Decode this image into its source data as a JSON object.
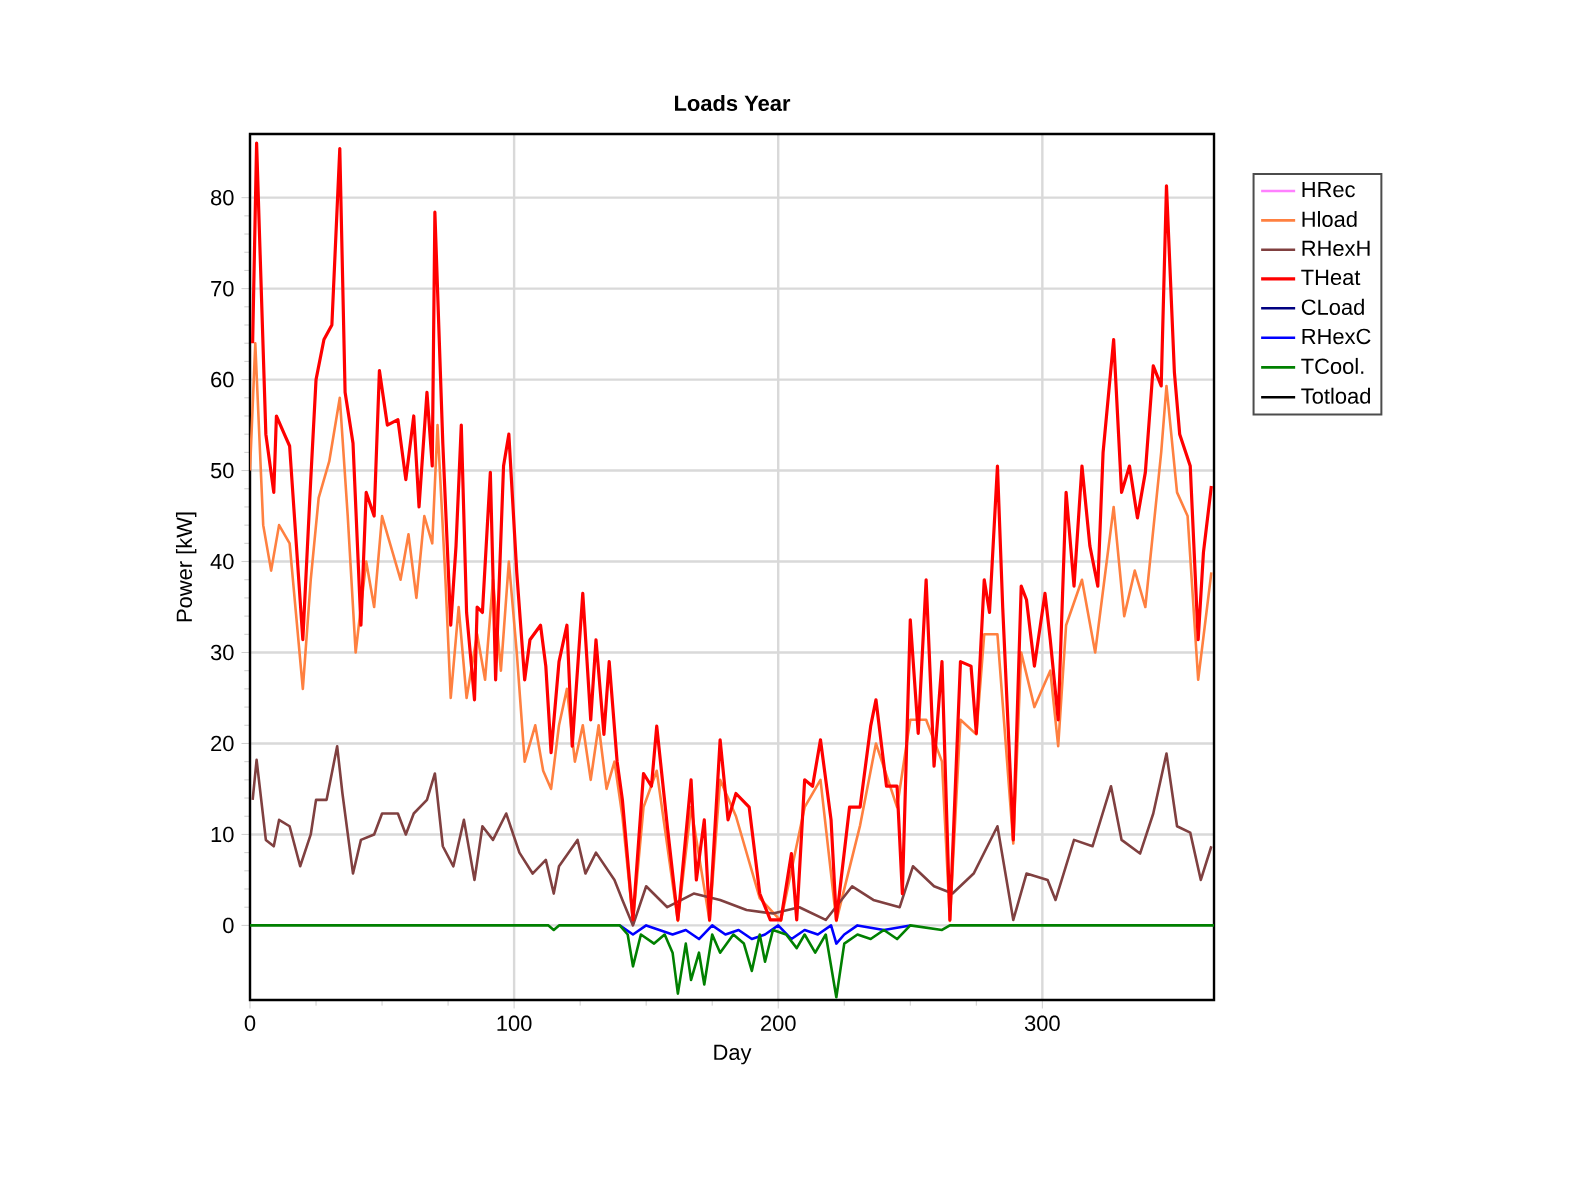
{
  "chart_data": {
    "type": "line",
    "title": "Loads Year",
    "xlabel": "Day",
    "ylabel": "Power [kW]",
    "xlim": [
      0,
      365
    ],
    "ylim": [
      -8.2,
      87
    ],
    "xticks": [
      0,
      100,
      200,
      300
    ],
    "yticks": [
      0,
      10,
      20,
      30,
      40,
      50,
      60,
      70,
      80
    ],
    "grid": true,
    "legend": "right",
    "series": [
      {
        "name": "HRec",
        "color": "#ff80ff",
        "values": [
          null
        ]
      },
      {
        "name": "Hload",
        "color": "#ff8040",
        "x": [
          0,
          2,
          5,
          8,
          11,
          15,
          20,
          23,
          26,
          30,
          34,
          37,
          40,
          44,
          47,
          50,
          53,
          57,
          60,
          63,
          66,
          69,
          71,
          74,
          76,
          79,
          82,
          86,
          89,
          92,
          95,
          98,
          101,
          104,
          108,
          111,
          114,
          117,
          120,
          123,
          126,
          129,
          132,
          135,
          138,
          141,
          145,
          149,
          154,
          162,
          167,
          174,
          178,
          184,
          193,
          201,
          210,
          216,
          222,
          231,
          237,
          245,
          250,
          256,
          262,
          265,
          269,
          275,
          278,
          283,
          289,
          292,
          297,
          303,
          306,
          309,
          315,
          320,
          327,
          331,
          335,
          339,
          345,
          347,
          351,
          355,
          359,
          364
        ],
        "values": [
          50,
          64,
          44,
          39,
          44,
          42,
          26,
          38,
          47,
          51,
          58,
          45,
          30,
          40,
          35,
          45,
          42,
          38,
          43,
          36,
          45,
          42,
          55,
          38,
          25,
          35,
          25,
          32,
          27,
          38,
          28,
          40,
          30,
          18,
          22,
          17,
          15,
          22,
          26,
          18,
          22,
          16,
          22,
          15,
          18,
          12,
          0.5,
          13,
          17,
          0.5,
          13,
          0.5,
          16,
          12,
          3,
          0.5,
          13,
          16,
          0.5,
          11,
          20,
          13,
          22.6,
          22.6,
          18,
          0.5,
          22.6,
          21,
          32,
          32,
          9,
          30,
          24,
          28,
          19.7,
          33,
          38,
          30,
          46,
          34,
          39,
          35,
          52,
          59.3,
          47.6,
          45,
          27,
          38.8
        ]
      },
      {
        "name": "RHexH",
        "color": "#804040",
        "x": [
          1,
          2.5,
          6,
          9,
          11,
          15,
          19,
          23,
          25,
          29,
          33,
          35,
          39,
          42,
          47,
          50,
          56,
          59,
          62,
          67,
          70,
          73,
          77,
          81,
          85,
          88,
          92,
          97,
          102,
          107,
          112,
          115,
          117,
          124,
          127,
          131,
          138,
          141,
          145,
          150,
          158,
          168,
          178,
          188,
          198,
          208,
          218,
          228,
          236,
          246,
          251,
          259,
          266,
          274,
          283,
          289,
          294,
          302,
          305,
          312,
          319,
          326,
          330,
          337,
          342,
          347,
          351,
          356,
          360,
          364
        ],
        "values": [
          13.8,
          18.2,
          9.4,
          8.7,
          11.6,
          10.9,
          6.5,
          10,
          13.8,
          13.8,
          19.7,
          14.5,
          5.7,
          9.4,
          10,
          12.3,
          12.3,
          10,
          12.3,
          13.8,
          16.7,
          8.7,
          6.5,
          11.6,
          5,
          10.9,
          9.4,
          12.3,
          8,
          5.7,
          7.2,
          3.5,
          6.5,
          9.4,
          5.7,
          8,
          5,
          2.8,
          0,
          4.3,
          2,
          3.5,
          2.8,
          1.7,
          1.3,
          2,
          0.6,
          4.3,
          2.8,
          2,
          6.5,
          4.3,
          3.5,
          5.7,
          10.9,
          0.6,
          5.7,
          5,
          2.8,
          9.4,
          8.7,
          15.3,
          9.4,
          7.9,
          12.3,
          18.9,
          10.9,
          10.2,
          5,
          8.7
        ]
      },
      {
        "name": "THeat",
        "color": "#ff0000",
        "x": [
          1,
          2.5,
          6,
          9,
          10,
          13,
          15,
          20,
          23,
          25,
          28,
          31,
          34,
          36,
          39,
          42,
          44,
          47,
          49,
          52,
          56,
          59,
          62,
          64,
          67,
          69,
          70,
          73,
          76,
          78,
          80,
          82,
          85,
          86,
          88,
          91,
          93,
          96,
          98,
          101,
          104,
          106,
          110,
          112,
          114,
          117,
          120,
          122,
          126,
          129,
          131,
          134,
          136,
          139,
          141,
          145,
          149,
          152,
          154,
          158,
          162,
          167,
          169,
          172,
          174,
          178,
          181,
          184,
          189,
          193,
          197,
          201,
          205,
          207,
          210,
          213,
          216,
          220,
          222,
          227,
          231,
          235,
          237,
          241,
          245,
          247,
          250,
          253,
          256,
          259,
          262,
          265,
          269,
          273,
          275,
          278,
          280,
          283,
          285,
          289,
          292,
          294,
          297,
          301,
          303,
          306,
          309,
          312,
          315,
          318,
          321,
          323,
          327,
          330,
          333,
          336,
          339,
          342,
          345,
          347,
          350,
          352,
          356,
          359,
          361,
          364
        ],
        "values": [
          64,
          86,
          54,
          47.6,
          56,
          54,
          52.7,
          31.4,
          49,
          60,
          64.4,
          66,
          85.4,
          58.6,
          53,
          33,
          47.6,
          45,
          61,
          55,
          55.6,
          49,
          56,
          46,
          58.6,
          50.5,
          78.4,
          53,
          33,
          41.7,
          55,
          34.4,
          24.8,
          35,
          34.4,
          49.8,
          27,
          50.5,
          54,
          38.8,
          27,
          31.4,
          33,
          28.5,
          19,
          29,
          33,
          19.7,
          36.5,
          22.6,
          31.4,
          21,
          29,
          18,
          13.8,
          0.6,
          16.7,
          15.3,
          21.9,
          10.9,
          0.6,
          16,
          5,
          11.6,
          0.6,
          20.4,
          11.6,
          14.5,
          13,
          3.5,
          0.6,
          0.6,
          7.9,
          0.6,
          16,
          15.3,
          20.4,
          11.6,
          0.6,
          13,
          13,
          21.9,
          24.8,
          15.3,
          15.3,
          3.5,
          33.6,
          21.1,
          38,
          17.5,
          29,
          0.6,
          29,
          28.5,
          21.1,
          38,
          34.4,
          50.5,
          34.9,
          9.4,
          37.3,
          35.8,
          28.5,
          36.5,
          31.4,
          22.6,
          47.6,
          37.3,
          50.5,
          41.7,
          37.3,
          52,
          64.4,
          47.6,
          50.5,
          44.8,
          49.8,
          61.5,
          59.3,
          81.3,
          60.8,
          54,
          50.5,
          31.4,
          41,
          48.3
        ]
      },
      {
        "name": "CLoad",
        "color": "#000080",
        "values": [
          null
        ]
      },
      {
        "name": "RHexC",
        "color": "#0000ff",
        "x": [
          140,
          145,
          150,
          155,
          160,
          165,
          170,
          175,
          180,
          185,
          190,
          195,
          200,
          205,
          210,
          215,
          220,
          222,
          225,
          230,
          240,
          250
        ],
        "values": [
          0,
          -1,
          0,
          -0.5,
          -1,
          -0.5,
          -1.5,
          0,
          -1,
          -0.5,
          -1.5,
          -1,
          0,
          -1.5,
          -0.5,
          -1,
          0,
          -2,
          -1,
          0,
          -0.5,
          0
        ]
      },
      {
        "name": "TCool.",
        "color": "#008000",
        "x": [
          0,
          113,
          115,
          117,
          140,
          143,
          145,
          148,
          153,
          157,
          160,
          162,
          165,
          167,
          170,
          172,
          175,
          178,
          183,
          187,
          190,
          193,
          195,
          198,
          203,
          207,
          210,
          214,
          218,
          222,
          225,
          230,
          235,
          240,
          245,
          250,
          262,
          265,
          365
        ],
        "values": [
          0,
          0,
          -0.5,
          0,
          0,
          -1,
          -4.5,
          -1,
          -2,
          -1,
          -3,
          -7.5,
          -2,
          -6,
          -3,
          -6.5,
          -1,
          -3,
          -1,
          -2,
          -5,
          -1,
          -4,
          -0.5,
          -1,
          -2.5,
          -1,
          -3,
          -1,
          -7.9,
          -2,
          -1,
          -1.5,
          -0.5,
          -1.5,
          0,
          -0.5,
          0,
          0
        ]
      },
      {
        "name": "Totload",
        "color": "#000000",
        "values": [
          null
        ]
      }
    ]
  }
}
